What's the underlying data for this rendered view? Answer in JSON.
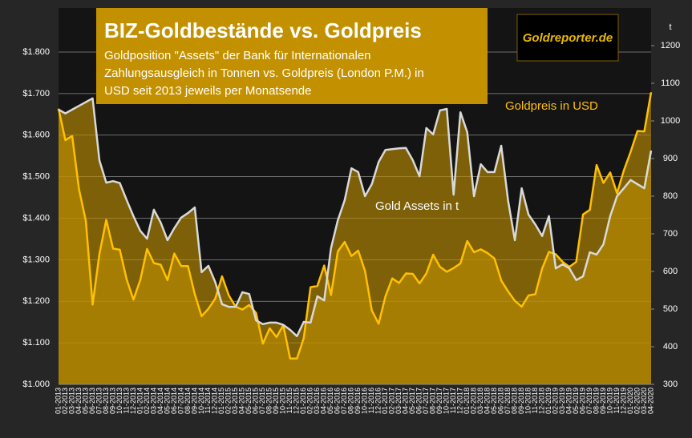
{
  "chart_data": {
    "type": "area",
    "title": "BIZ-Goldbestände vs. Goldpreis",
    "subtitle": [
      "Goldposition \"Assets\" der Bank für Internationalen",
      "Zahlungsausgleich in Tonnen vs. Goldpreis (London P.M.) in",
      "USD seit 2013 jeweils per Monatsende"
    ],
    "logo": "Goldreporter.de",
    "y2_label": "t",
    "annotations": [
      "Goldpreis in USD",
      "Gold Assets in t"
    ],
    "categories": [
      "01-2013",
      "02-2013",
      "03-2013",
      "04-2013",
      "05-2013",
      "06-2013",
      "07-2013",
      "08-2013",
      "09-2013",
      "10-2013",
      "11-2013",
      "12-2013",
      "01-2014",
      "02-2014",
      "03-2014",
      "04-2014",
      "05-2014",
      "06-2014",
      "07-2014",
      "08-2014",
      "09-2014",
      "10-2014",
      "11-2014",
      "12-2014",
      "01-2015",
      "02-2015",
      "03-2015",
      "04-2015",
      "05-2015",
      "06-2015",
      "07-2015",
      "08-2015",
      "09-2015",
      "10-2015",
      "11-2015",
      "12-2015",
      "01-2016",
      "02-2016",
      "03-2016",
      "04-2016",
      "05-2016",
      "06-2016",
      "07-2016",
      "08-2016",
      "09-2016",
      "10-2016",
      "11-2016",
      "12-2016",
      "01-2017",
      "02-2017",
      "03-2017",
      "04-2017",
      "05-2017",
      "06-2017",
      "07-2017",
      "08-2017",
      "09-2017",
      "10-2017",
      "11-2017",
      "12-2017",
      "01-2018",
      "02-2018",
      "03-2018",
      "04-2018",
      "05-2018",
      "06-2018",
      "07-2018",
      "08-2018",
      "09-2018",
      "10-2018",
      "11-2018",
      "12-2018",
      "01-2019",
      "02-2019",
      "03-2019",
      "04-2019",
      "05-2019",
      "06-2019",
      "07-2019",
      "08-2019",
      "09-2019",
      "10-2019",
      "11-2019",
      "12-2019",
      "01-2020",
      "02-2020",
      "03-2020",
      "04-2020"
    ],
    "series": [
      {
        "name": "Goldpreis in USD",
        "color": "#ffc000",
        "axis": "y",
        "values": [
          1664,
          1588,
          1598,
          1470,
          1394,
          1192,
          1314,
          1396,
          1327,
          1324,
          1253,
          1204,
          1251,
          1326,
          1292,
          1288,
          1251,
          1315,
          1285,
          1285,
          1217,
          1164,
          1182,
          1206,
          1260,
          1214,
          1187,
          1180,
          1191,
          1172,
          1098,
          1135,
          1114,
          1142,
          1062,
          1062,
          1111,
          1234,
          1237,
          1286,
          1215,
          1320,
          1343,
          1309,
          1322,
          1273,
          1178,
          1146,
          1212,
          1255,
          1244,
          1267,
          1266,
          1243,
          1267,
          1312,
          1283,
          1271,
          1280,
          1291,
          1345,
          1318,
          1325,
          1316,
          1303,
          1250,
          1224,
          1201,
          1187,
          1214,
          1217,
          1279,
          1319,
          1313,
          1295,
          1283,
          1295,
          1409,
          1420,
          1528,
          1485,
          1510,
          1460,
          1515,
          1560,
          1610,
          1609,
          1703
        ]
      },
      {
        "name": "Gold Assets in t",
        "color": "#d9d9d9",
        "axis": "y2",
        "values": [
          1030,
          1020,
          1030,
          1040,
          1050,
          1060,
          895,
          836,
          840,
          835,
          790,
          747,
          708,
          687,
          764,
          730,
          683,
          715,
          743,
          755,
          770,
          598,
          615,
          572,
          513,
          506,
          506,
          545,
          540,
          470,
          460,
          464,
          464,
          458,
          445,
          428,
          466,
          464,
          534,
          523,
          662,
          736,
          789,
          874,
          864,
          800,
          832,
          891,
          923,
          925,
          927,
          928,
          896,
          853,
          981,
          964,
          1028,
          1032,
          804,
          1023,
          970,
          800,
          885,
          864,
          864,
          934,
          789,
          683,
          821,
          751,
          725,
          694,
          747,
          608,
          619,
          608,
          577,
          587,
          651,
          645,
          672,
          747,
          800,
          821,
          843,
          832,
          821,
          921
        ]
      }
    ],
    "ylim": [
      1000,
      1800
    ],
    "yticks": [
      {
        "value": 1000,
        "label": "$1.000"
      },
      {
        "value": 1100,
        "label": "$1.100"
      },
      {
        "value": 1200,
        "label": "$1.200"
      },
      {
        "value": 1300,
        "label": "$1.300"
      },
      {
        "value": 1400,
        "label": "$1.400"
      },
      {
        "value": 1500,
        "label": "$1.500"
      },
      {
        "value": 1600,
        "label": "$1.600"
      },
      {
        "value": 1700,
        "label": "$1.700"
      },
      {
        "value": 1800,
        "label": "$1.800"
      }
    ],
    "y2lim": [
      300,
      1200
    ],
    "y2ticks": [
      300,
      400,
      500,
      600,
      700,
      800,
      900,
      1000,
      1100,
      1200
    ],
    "grid": true
  }
}
